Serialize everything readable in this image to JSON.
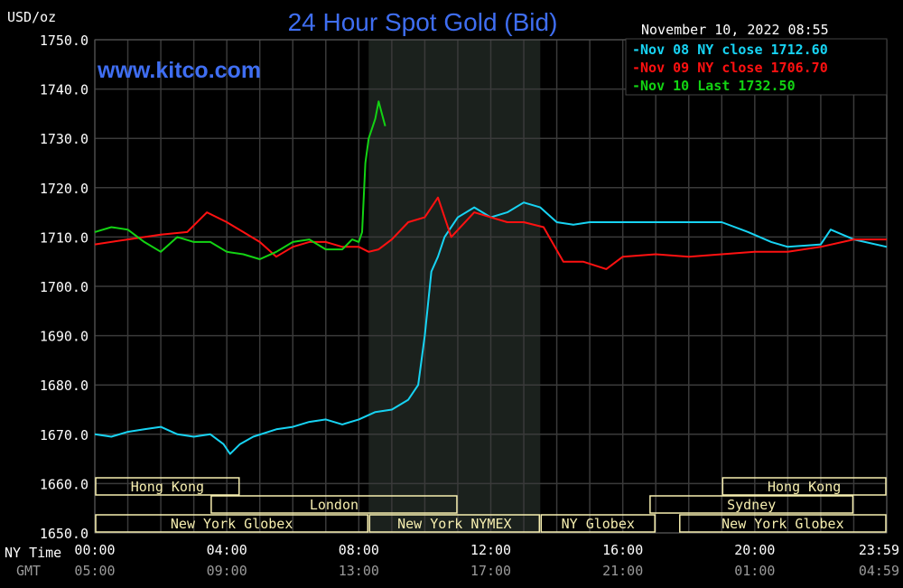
{
  "header": {
    "unit_label": "USD/oz",
    "title": "24 Hour Spot Gold (Bid)",
    "timestamp": "November 10, 2022 08:55",
    "watermark": "www.kitco.com"
  },
  "colors": {
    "background": "#000000",
    "title": "#3f6ef2",
    "grid": "#3a3a3a",
    "session_band": "#1b211d",
    "session_box_fill": "#f7efb0",
    "session_text": "#7a6a24",
    "nov08": "#17d3f3",
    "nov09": "#ff1111",
    "nov10": "#13d313",
    "axis_text": "#ffffff",
    "gmt_text": "#9a9a9a"
  },
  "axis_left": {
    "row1_label": "NY Time",
    "row2_label": "GMT"
  },
  "sessions": [
    {
      "name": "Hong Kong",
      "start": 0.0,
      "end": 4.4,
      "row": 1
    },
    {
      "name": "Hong Kong",
      "start": 19.0,
      "end": 24.0,
      "row": 1
    },
    {
      "name": "London",
      "start": 3.5,
      "end": 11.0,
      "row": 2
    },
    {
      "name": "Sydney",
      "start": 16.8,
      "end": 23.0,
      "row": 2
    },
    {
      "name": "New York Globex",
      "start": 0.0,
      "end": 8.3,
      "row": 3
    },
    {
      "name": "New York NYMEX",
      "start": 8.3,
      "end": 13.5,
      "row": 3
    },
    {
      "name": "NY Globex",
      "start": 13.5,
      "end": 17.0,
      "row": 3
    },
    {
      "name": "New York Globex",
      "start": 17.7,
      "end": 24.0,
      "row": 3
    }
  ],
  "chart_data": {
    "type": "line",
    "title": "24 Hour Spot Gold (Bid)",
    "ylabel": "USD/oz",
    "xlabel": "",
    "ylim": [
      1650,
      1750
    ],
    "xlim": [
      0,
      24
    ],
    "grid": true,
    "legend_position": "top-right",
    "yticks": [
      "1750.0",
      "1740.0",
      "1730.0",
      "1720.0",
      "1710.0",
      "1700.0",
      "1690.0",
      "1680.0",
      "1670.0",
      "1660.0",
      "1650.0"
    ],
    "xticks_ny": [
      "00:00",
      "04:00",
      "08:00",
      "12:00",
      "16:00",
      "20:00",
      "23:59"
    ],
    "xticks_gmt": [
      "05:00",
      "09:00",
      "13:00",
      "17:00",
      "21:00",
      "01:00",
      "04:59"
    ],
    "shaded_region": [
      8.3,
      13.5
    ],
    "series": [
      {
        "name": "Nov 08 NY close 1712.60",
        "color": "#17d3f3",
        "x": [
          0,
          0.5,
          1.0,
          1.5,
          2.0,
          2.5,
          3.0,
          3.5,
          3.9,
          4.1,
          4.4,
          4.8,
          5.5,
          6.0,
          6.5,
          7.0,
          7.5,
          8.0,
          8.5,
          9.0,
          9.5,
          9.8,
          10.0,
          10.2,
          10.4,
          10.6,
          11.0,
          11.5,
          12.0,
          12.5,
          13.0,
          13.5,
          14.0,
          14.5,
          15.0,
          15.5,
          16.0,
          17.0,
          18.0,
          19.0,
          19.8,
          20.5,
          21.0,
          22.0,
          22.3,
          23.0,
          24.0
        ],
        "y": [
          1670,
          1669.5,
          1670.5,
          1671,
          1671.5,
          1670,
          1669.5,
          1670,
          1668,
          1666,
          1668,
          1669.5,
          1671,
          1671.5,
          1672.5,
          1673,
          1672,
          1673,
          1674.5,
          1675,
          1677,
          1680,
          1690,
          1703,
          1706,
          1710,
          1714,
          1716,
          1714,
          1715,
          1717,
          1716,
          1713,
          1712.5,
          1713,
          1713,
          1713,
          1713,
          1713,
          1713,
          1711,
          1709,
          1708,
          1708.5,
          1711.5,
          1709.5,
          1708
        ]
      },
      {
        "name": "Nov 09 NY close 1706.70",
        "color": "#ff1111",
        "x": [
          0,
          1.0,
          2.0,
          2.8,
          3.4,
          4.0,
          4.5,
          5.0,
          5.5,
          6.0,
          6.5,
          7.0,
          7.5,
          8.0,
          8.3,
          8.6,
          9.0,
          9.5,
          10.0,
          10.4,
          10.8,
          11.5,
          12.0,
          12.5,
          13.0,
          13.6,
          14.2,
          14.8,
          15.5,
          16.0,
          17.0,
          18.0,
          19.0,
          20.0,
          21.0,
          22.0,
          23.0,
          24.0
        ],
        "y": [
          1708.5,
          1709.5,
          1710.5,
          1711,
          1715,
          1713,
          1711,
          1709,
          1706,
          1708,
          1709,
          1709,
          1708,
          1708,
          1707,
          1707.5,
          1709.5,
          1713,
          1714,
          1718,
          1710,
          1715,
          1714,
          1713,
          1713,
          1712,
          1705,
          1705,
          1703.5,
          1706,
          1706.5,
          1706,
          1706.5,
          1707,
          1707,
          1708,
          1709.5,
          1709.5
        ]
      },
      {
        "name": "Nov 10 Last 1732.50",
        "color": "#13d313",
        "x": [
          0,
          0.5,
          1.0,
          1.5,
          2.0,
          2.5,
          3.0,
          3.5,
          4.0,
          4.5,
          5.0,
          5.5,
          6.0,
          6.5,
          7.0,
          7.5,
          7.8,
          8.0,
          8.1,
          8.2,
          8.3,
          8.4,
          8.5,
          8.6,
          8.7,
          8.8
        ],
        "y": [
          1711,
          1712,
          1711.5,
          1709,
          1707,
          1710,
          1709,
          1709,
          1707,
          1706.5,
          1705.5,
          1707,
          1709,
          1709.5,
          1707.5,
          1707.5,
          1709.5,
          1709,
          1711,
          1725,
          1730,
          1732,
          1734,
          1737.5,
          1735,
          1732.5
        ]
      }
    ]
  }
}
